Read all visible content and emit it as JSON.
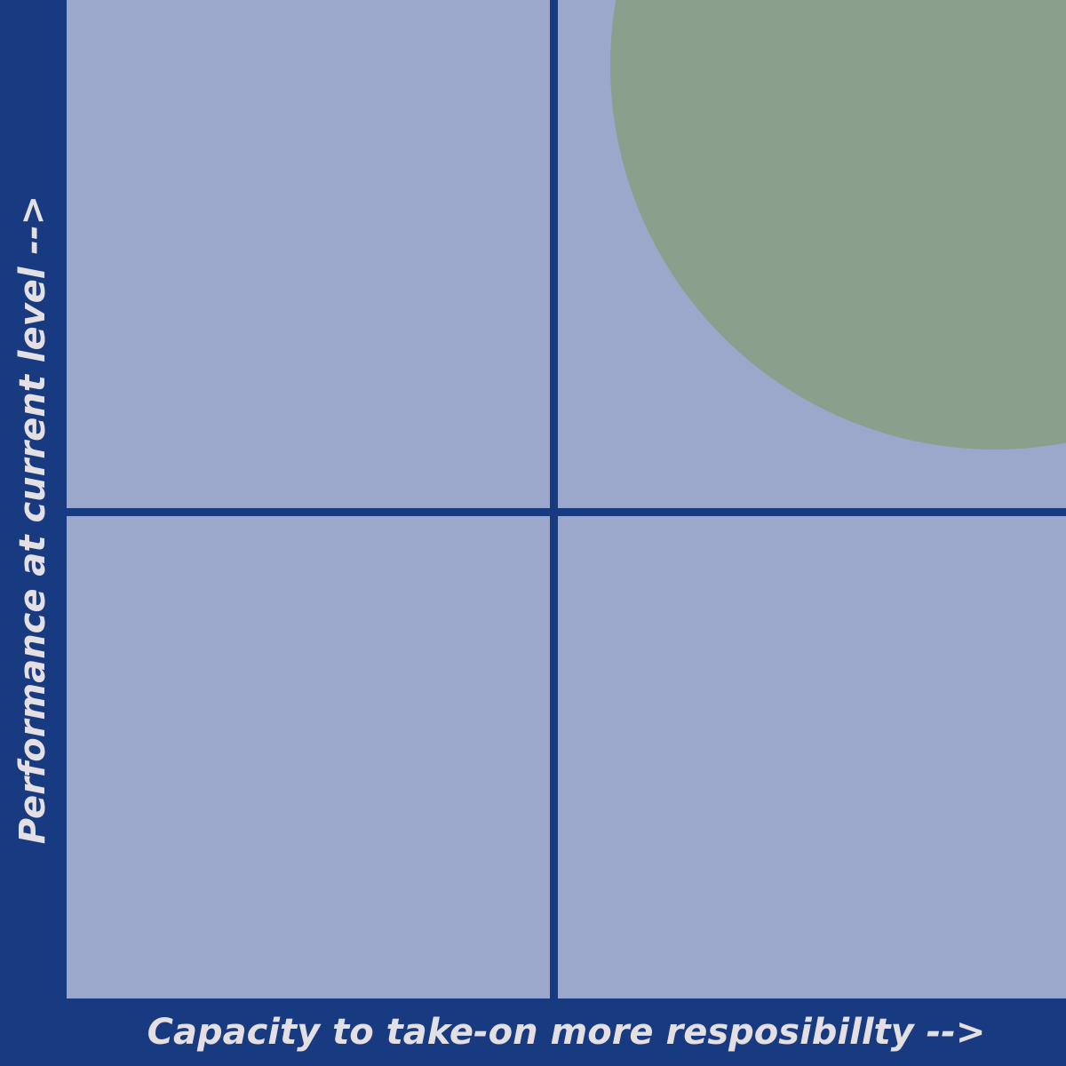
{
  "axes": {
    "x_label": "Capacity to take-on more resposibillty -->",
    "y_label": "Performance at current level -->"
  },
  "colors": {
    "frame": "#173a80",
    "quadrant_fill": "#9ba8cc",
    "highlight": "#8a9f8c",
    "label_text": "#e4dfe3"
  }
}
